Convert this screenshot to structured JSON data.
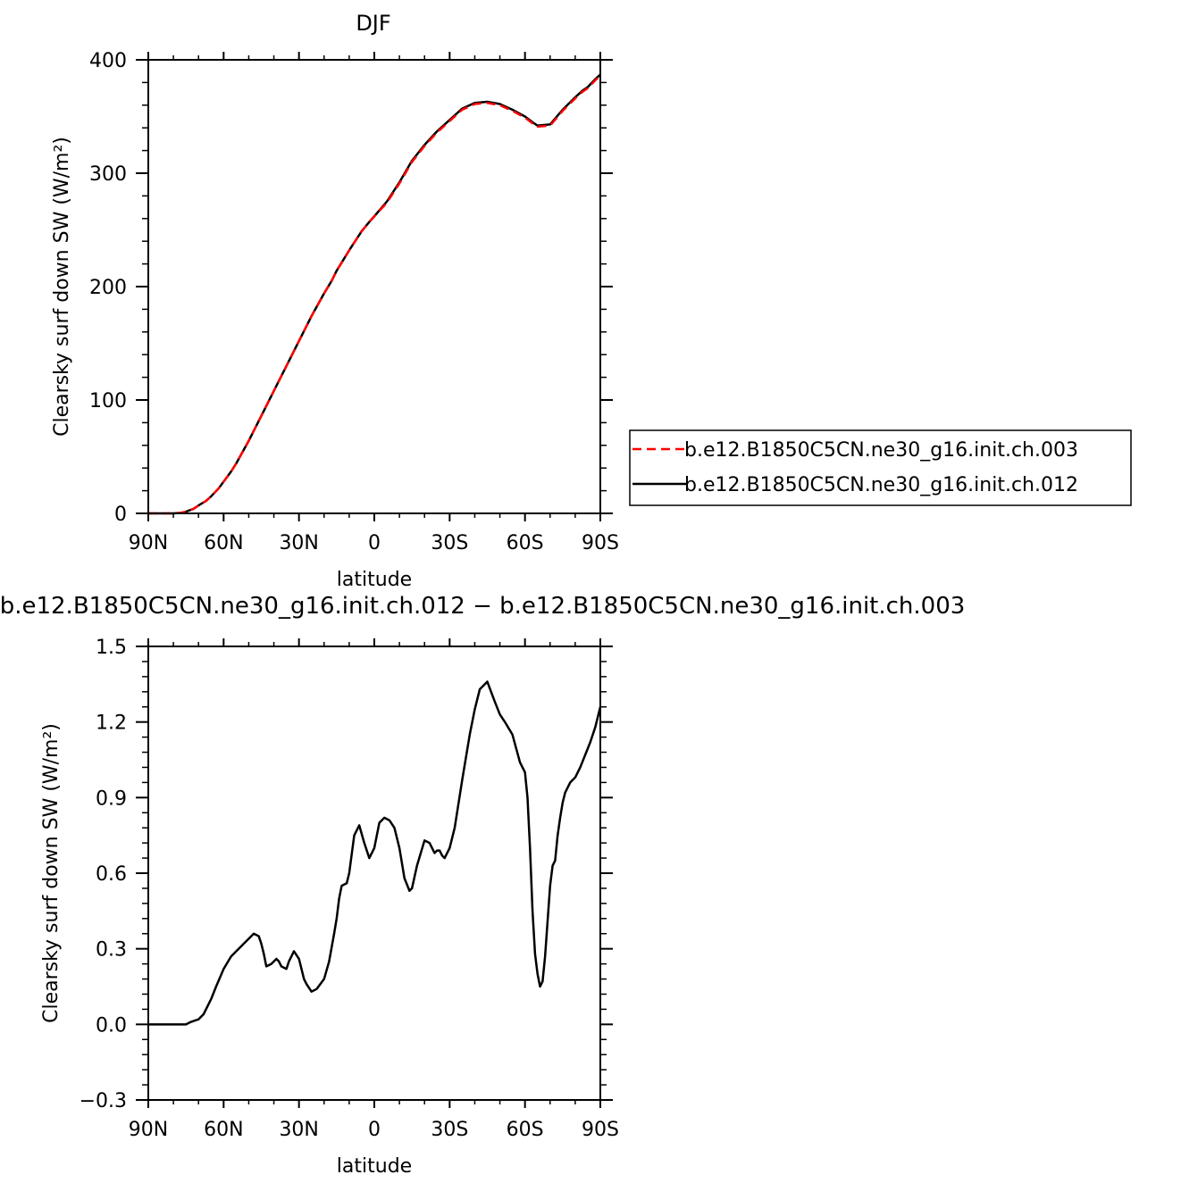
{
  "chart_data": [
    {
      "type": "line",
      "title": "DJF",
      "xlabel": "latitude",
      "ylabel": "Clearsky surf down SW (W/m²)",
      "xlim": [
        90,
        -90
      ],
      "ylim": [
        0,
        400
      ],
      "x_ticks": [
        90,
        60,
        30,
        0,
        -30,
        -60,
        -90
      ],
      "x_tick_labels": [
        "90N",
        "60N",
        "30N",
        "0",
        "30S",
        "60S",
        "90S"
      ],
      "y_ticks": [
        0,
        100,
        200,
        300,
        400
      ],
      "y_tick_labels": [
        "0",
        "100",
        "200",
        "300",
        "400"
      ],
      "legend_position": "right",
      "series": [
        {
          "name": "b.e12.B1850C5CN.ne30_g16.init.ch.003",
          "color": "#ff0000",
          "dash": "dashed",
          "x": [
            90,
            85,
            80,
            77,
            75,
            72,
            70,
            67,
            65,
            62,
            60,
            57,
            55,
            50,
            45,
            40,
            35,
            30,
            25,
            20,
            17,
            15,
            10,
            5,
            2,
            0,
            -5,
            -10,
            -15,
            -20,
            -25,
            -30,
            -33,
            -35,
            -40,
            -45,
            -50,
            -55,
            -60,
            -63,
            -65,
            -70,
            -75,
            -80,
            -83,
            -85,
            -88,
            -90
          ],
          "y": [
            0,
            0,
            0,
            0.5,
            1.5,
            4,
            7,
            11,
            15,
            22,
            28,
            37,
            44,
            64,
            86,
            108,
            130,
            152,
            174,
            194,
            205,
            214,
            232,
            249,
            257,
            262,
            274,
            291,
            310,
            324,
            336,
            346,
            352,
            356,
            361,
            362,
            360,
            355,
            349,
            344,
            341,
            342,
            355,
            366,
            372,
            375,
            382,
            386
          ]
        },
        {
          "name": "b.e12.B1850C5CN.ne30_g16.init.ch.012",
          "color": "#000000",
          "dash": "solid",
          "x": [
            90,
            85,
            80,
            77,
            75,
            72,
            70,
            67,
            65,
            62,
            60,
            57,
            55,
            50,
            45,
            40,
            35,
            30,
            25,
            20,
            17,
            15,
            10,
            5,
            2,
            0,
            -5,
            -10,
            -15,
            -20,
            -25,
            -30,
            -33,
            -35,
            -40,
            -45,
            -50,
            -55,
            -60,
            -63,
            -65,
            -70,
            -75,
            -80,
            -83,
            -85,
            -88,
            -90
          ],
          "y": [
            0,
            0,
            0,
            0.5,
            1.5,
            4,
            7,
            11,
            15,
            22,
            28,
            37,
            44,
            64,
            86,
            108,
            130,
            152,
            174,
            194,
            205,
            214,
            232,
            249,
            257,
            262,
            275,
            292,
            311,
            325,
            337,
            347,
            353,
            357,
            362,
            363,
            361,
            356,
            350,
            345,
            342,
            343,
            356,
            367,
            373,
            376,
            383,
            387
          ]
        }
      ]
    },
    {
      "type": "line",
      "title": "b.e12.B1850C5CN.ne30_g16.init.ch.012 − b.e12.B1850C5CN.ne30_g16.init.ch.003",
      "xlabel": "latitude",
      "ylabel": "Clearsky surf down SW (W/m²)",
      "xlim": [
        90,
        -90
      ],
      "ylim": [
        -0.3,
        1.5
      ],
      "x_ticks": [
        90,
        60,
        30,
        0,
        -30,
        -60,
        -90
      ],
      "x_tick_labels": [
        "90N",
        "60N",
        "30N",
        "0",
        "30S",
        "60S",
        "90S"
      ],
      "y_ticks": [
        -0.3,
        0,
        0.3,
        0.6,
        0.9,
        1.2,
        1.5
      ],
      "y_tick_labels": [
        "−0.3",
        "0.0",
        "0.3",
        "0.6",
        "0.9",
        "1.2",
        "1.5"
      ],
      "series": [
        {
          "color": "#000000",
          "dash": "solid",
          "x": [
            90,
            85,
            80,
            75,
            73,
            70,
            68,
            65,
            63,
            60,
            57,
            55,
            52,
            50,
            48,
            46,
            45,
            44,
            43,
            41,
            39,
            38,
            37,
            35,
            34,
            33,
            32,
            30,
            28,
            27,
            25,
            23,
            20,
            18,
            16,
            15,
            14,
            13,
            11,
            10,
            8,
            6,
            4,
            2,
            0,
            -2,
            -4,
            -6,
            -8,
            -10,
            -12,
            -14,
            -15,
            -17,
            -20,
            -22,
            -24,
            -25,
            -26,
            -27,
            -28,
            -30,
            -32,
            -35,
            -38,
            -40,
            -42,
            -45,
            -48,
            -50,
            -52,
            -55,
            -58,
            -60,
            -61,
            -62,
            -63,
            -64,
            -65,
            -66,
            -67,
            -68,
            -70,
            -71,
            -72,
            -73,
            -74,
            -75,
            -76,
            -77,
            -78,
            -80,
            -82,
            -84,
            -86,
            -88,
            -90
          ],
          "y": [
            0,
            0,
            0,
            0,
            0.01,
            0.02,
            0.04,
            0.1,
            0.15,
            0.22,
            0.27,
            0.29,
            0.32,
            0.34,
            0.36,
            0.35,
            0.32,
            0.28,
            0.23,
            0.24,
            0.26,
            0.25,
            0.23,
            0.22,
            0.25,
            0.27,
            0.29,
            0.26,
            0.18,
            0.16,
            0.13,
            0.14,
            0.18,
            0.25,
            0.36,
            0.42,
            0.5,
            0.55,
            0.56,
            0.6,
            0.75,
            0.79,
            0.72,
            0.66,
            0.7,
            0.8,
            0.82,
            0.81,
            0.78,
            0.7,
            0.58,
            0.53,
            0.54,
            0.63,
            0.73,
            0.72,
            0.68,
            0.69,
            0.69,
            0.67,
            0.66,
            0.7,
            0.78,
            0.97,
            1.15,
            1.25,
            1.33,
            1.36,
            1.28,
            1.23,
            1.2,
            1.15,
            1.04,
            1.0,
            0.9,
            0.7,
            0.45,
            0.28,
            0.2,
            0.15,
            0.17,
            0.27,
            0.55,
            0.63,
            0.65,
            0.75,
            0.82,
            0.88,
            0.92,
            0.94,
            0.96,
            0.98,
            1.02,
            1.07,
            1.12,
            1.18,
            1.26
          ]
        }
      ]
    }
  ]
}
